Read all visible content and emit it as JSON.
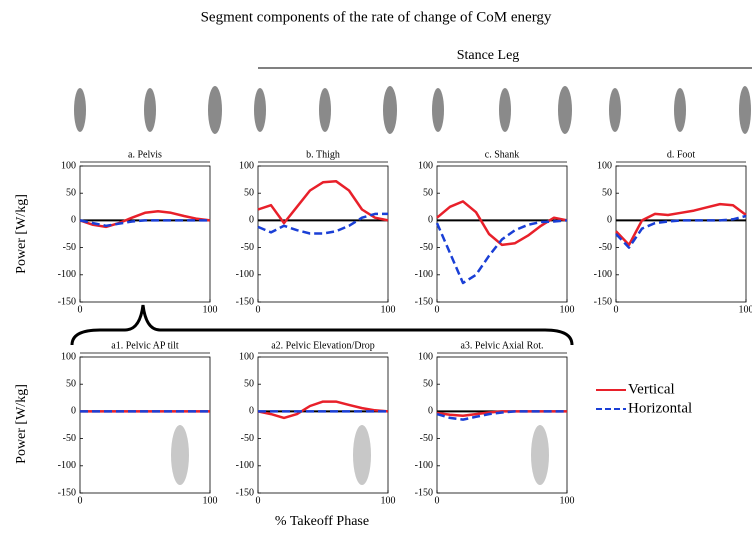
{
  "figure": {
    "title": "Segment components of the rate of change of CoM energy",
    "group_label": "Stance Leg",
    "ylabels": [
      "Power [W/kg]",
      "Power [W/kg]"
    ],
    "xlabel": "% Takeoff Phase",
    "legend": [
      {
        "name": "Vertical",
        "color": "#e8202a",
        "dashed": false
      },
      {
        "name": "Horizontal",
        "color": "#1a3fd6",
        "dashed": true
      }
    ]
  },
  "chart_data": [
    {
      "type": "line",
      "title": "a. Pelvis",
      "x": [
        0,
        10,
        20,
        30,
        40,
        50,
        60,
        70,
        80,
        90,
        100
      ],
      "xlim": [
        0,
        100
      ],
      "xticks": [
        0,
        100
      ],
      "ylim": [
        -150,
        100
      ],
      "yticks": [
        -150,
        -100,
        -50,
        0,
        50,
        100
      ],
      "series": [
        {
          "values": [
            0,
            -8,
            -12,
            -5,
            5,
            14,
            17,
            14,
            8,
            3,
            0
          ]
        },
        {
          "values": [
            0,
            -5,
            -10,
            -6,
            -2,
            0,
            0,
            0,
            0,
            0,
            0
          ]
        }
      ]
    },
    {
      "type": "line",
      "title": "b. Thigh",
      "x": [
        0,
        10,
        20,
        30,
        40,
        50,
        60,
        70,
        80,
        90,
        100
      ],
      "xlim": [
        0,
        100
      ],
      "xticks": [
        0,
        100
      ],
      "ylim": [
        -150,
        100
      ],
      "yticks": [
        -150,
        -100,
        -50,
        0,
        50,
        100
      ],
      "series": [
        {
          "values": [
            20,
            28,
            -5,
            25,
            55,
            70,
            72,
            55,
            20,
            5,
            0
          ]
        },
        {
          "values": [
            -12,
            -22,
            -10,
            -18,
            -24,
            -24,
            -20,
            -10,
            5,
            12,
            12
          ]
        }
      ]
    },
    {
      "type": "line",
      "title": "c. Shank",
      "x": [
        0,
        10,
        20,
        30,
        40,
        50,
        60,
        70,
        80,
        90,
        100
      ],
      "xlim": [
        0,
        100
      ],
      "xticks": [
        0,
        100
      ],
      "ylim": [
        -150,
        100
      ],
      "yticks": [
        -150,
        -100,
        -50,
        0,
        50,
        100
      ],
      "series": [
        {
          "values": [
            5,
            25,
            35,
            15,
            -25,
            -45,
            -42,
            -28,
            -10,
            5,
            0
          ]
        },
        {
          "values": [
            -5,
            -60,
            -115,
            -100,
            -65,
            -35,
            -18,
            -8,
            -3,
            -2,
            0
          ]
        }
      ]
    },
    {
      "type": "line",
      "title": "d. Foot",
      "x": [
        0,
        10,
        20,
        30,
        40,
        50,
        60,
        70,
        80,
        90,
        100
      ],
      "xlim": [
        0,
        100
      ],
      "xticks": [
        0,
        100
      ],
      "ylim": [
        -150,
        100
      ],
      "yticks": [
        -150,
        -100,
        -50,
        0,
        50,
        100
      ],
      "series": [
        {
          "values": [
            -20,
            -45,
            0,
            12,
            10,
            14,
            18,
            24,
            30,
            28,
            10
          ]
        },
        {
          "values": [
            -25,
            -50,
            -15,
            -5,
            -2,
            0,
            0,
            0,
            0,
            2,
            8
          ]
        }
      ]
    },
    {
      "type": "line",
      "title": "a1. Pelvic AP tilt",
      "x": [
        0,
        10,
        20,
        30,
        40,
        50,
        60,
        70,
        80,
        90,
        100
      ],
      "xlim": [
        0,
        100
      ],
      "xticks": [
        0,
        100
      ],
      "ylim": [
        -150,
        100
      ],
      "yticks": [
        -150,
        -100,
        -50,
        0,
        50,
        100
      ],
      "series": [
        {
          "values": [
            0,
            0,
            0,
            0,
            0,
            0,
            0,
            0,
            0,
            0,
            0
          ]
        },
        {
          "values": [
            0,
            0,
            0,
            0,
            0,
            0,
            0,
            0,
            0,
            0,
            0
          ]
        }
      ]
    },
    {
      "type": "line",
      "title": "a2. Pelvic Elevation/Drop",
      "x": [
        0,
        10,
        20,
        30,
        40,
        50,
        60,
        70,
        80,
        90,
        100
      ],
      "xlim": [
        0,
        100
      ],
      "xticks": [
        0,
        100
      ],
      "ylim": [
        -150,
        100
      ],
      "yticks": [
        -150,
        -100,
        -50,
        0,
        50,
        100
      ],
      "series": [
        {
          "values": [
            0,
            -5,
            -12,
            -5,
            10,
            18,
            18,
            12,
            6,
            2,
            0
          ]
        },
        {
          "values": [
            0,
            0,
            0,
            0,
            0,
            0,
            0,
            0,
            0,
            0,
            0
          ]
        }
      ]
    },
    {
      "type": "line",
      "title": "a3. Pelvic Axial Rot.",
      "x": [
        0,
        10,
        20,
        30,
        40,
        50,
        60,
        70,
        80,
        90,
        100
      ],
      "xlim": [
        0,
        100
      ],
      "xticks": [
        0,
        100
      ],
      "ylim": [
        -150,
        100
      ],
      "yticks": [
        -150,
        -100,
        -50,
        0,
        50,
        100
      ],
      "series": [
        {
          "values": [
            -3,
            -6,
            -8,
            -5,
            -2,
            0,
            0,
            0,
            0,
            0,
            0
          ]
        },
        {
          "values": [
            -5,
            -12,
            -15,
            -10,
            -5,
            -2,
            0,
            0,
            0,
            0,
            0
          ]
        }
      ]
    }
  ]
}
